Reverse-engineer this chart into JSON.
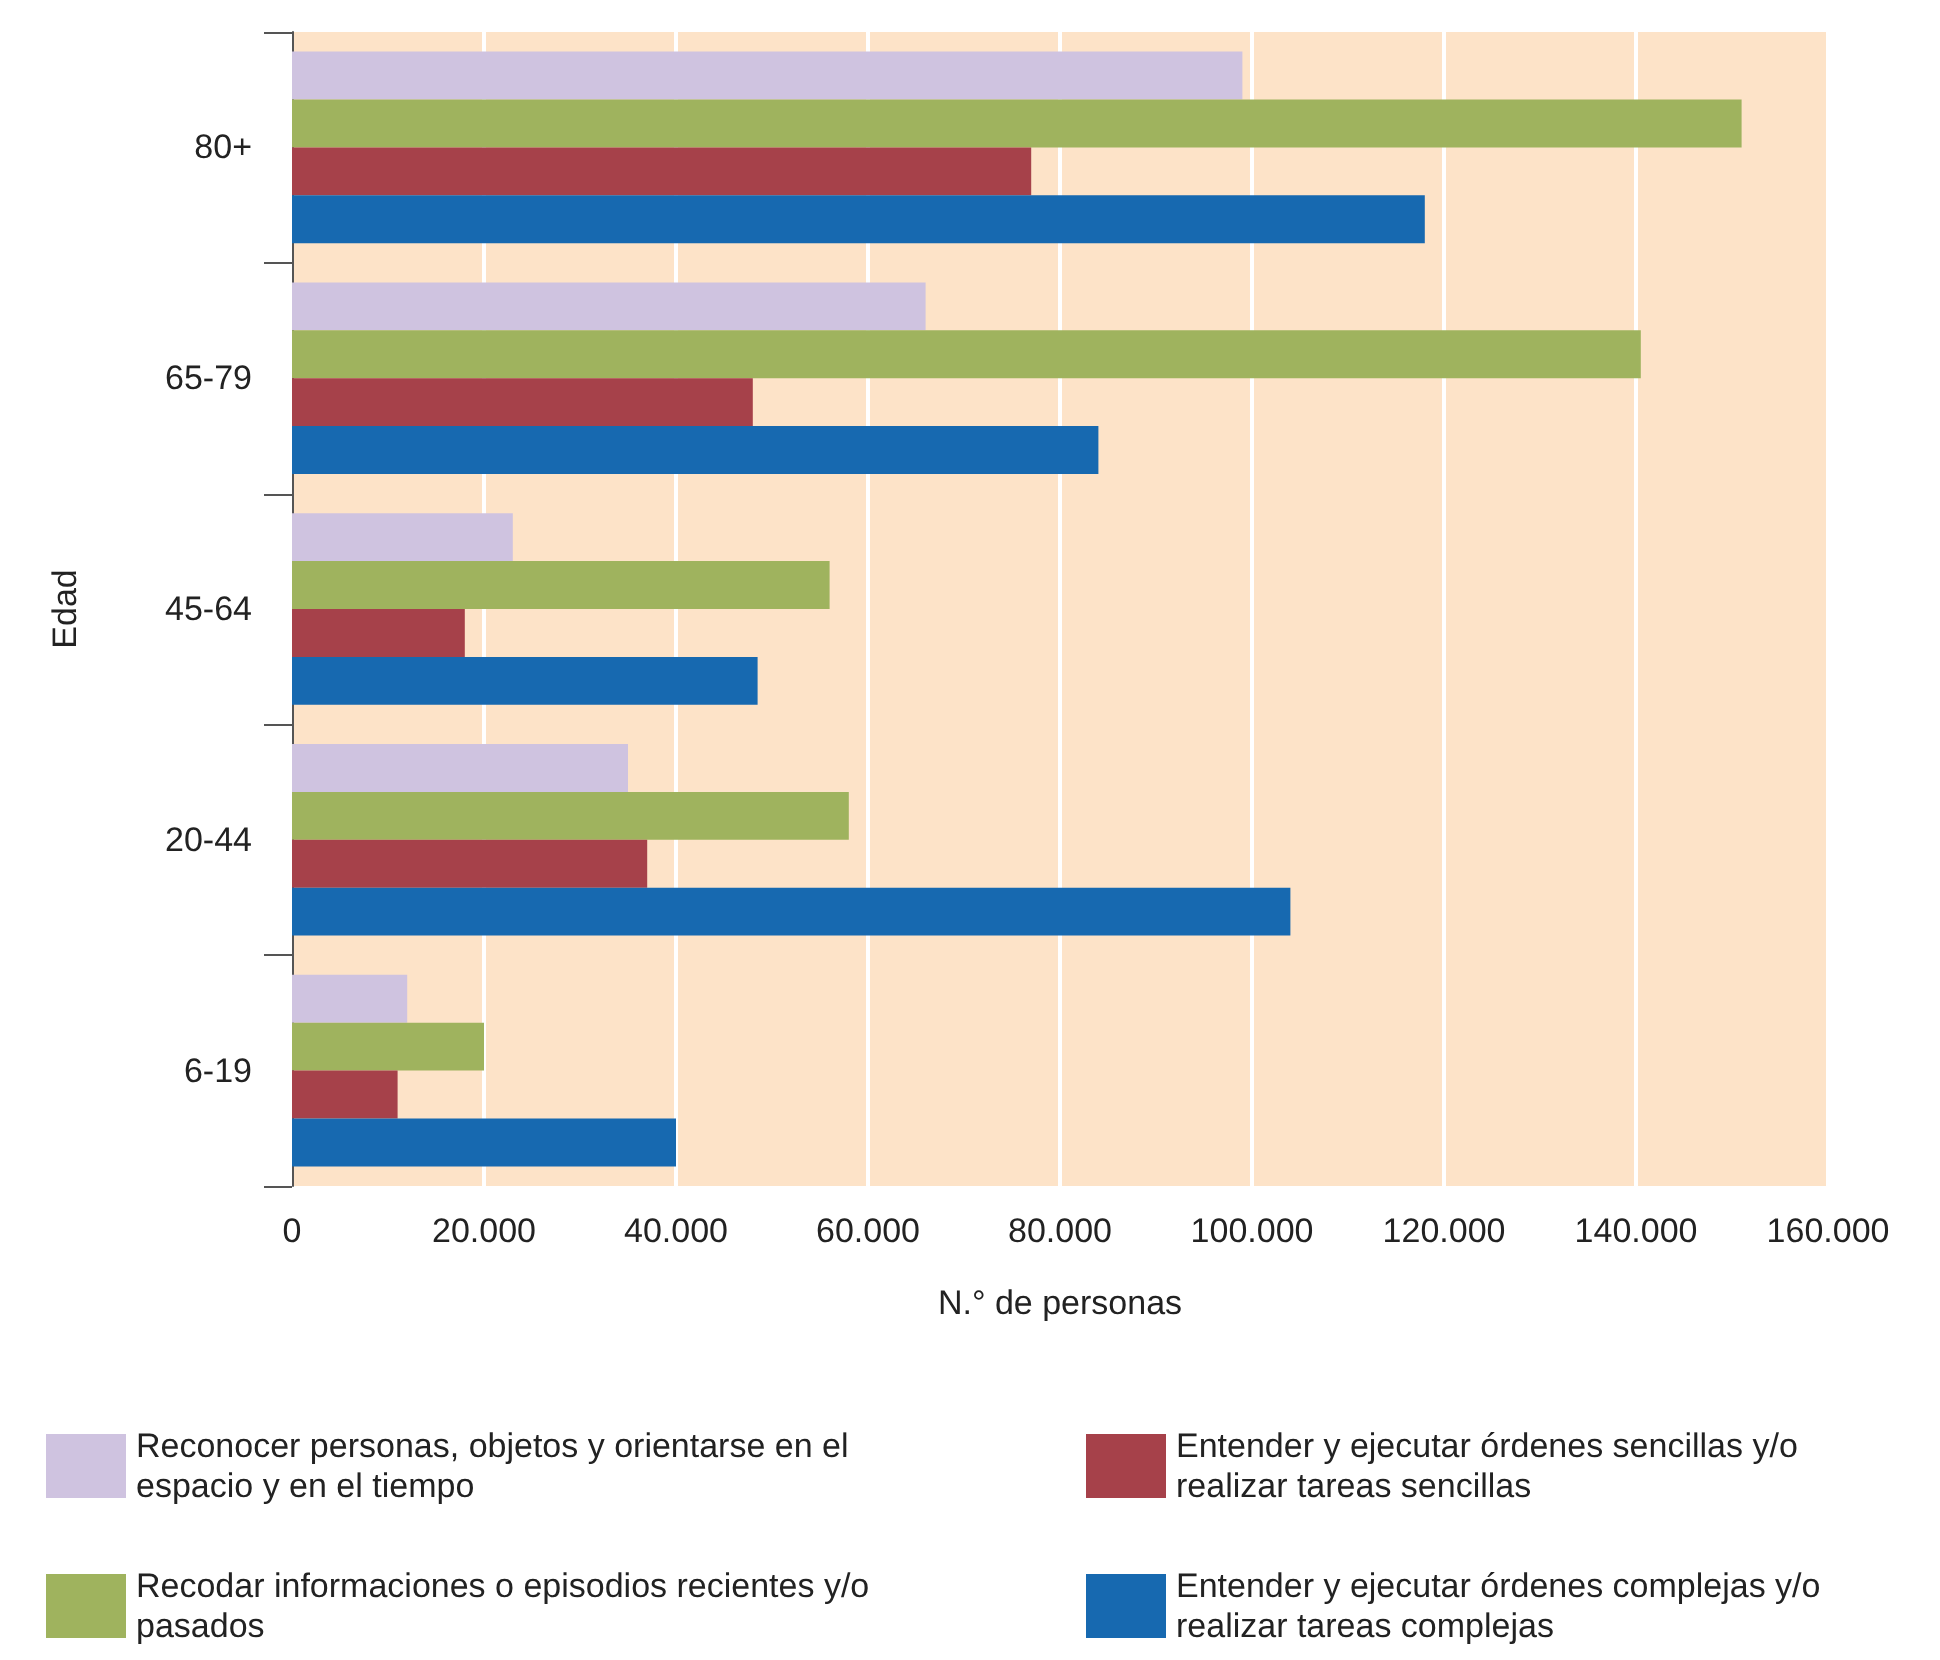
{
  "chart_data": {
    "type": "bar",
    "orientation": "horizontal",
    "xlabel": "N.° de personas",
    "ylabel": "Edad",
    "categories": [
      "80+",
      "65-79",
      "45-64",
      "20-44",
      "6-19"
    ],
    "series": [
      {
        "name": "Reconocer personas, objetos y orientarse en el espacio y en el tiempo",
        "color": "#cfc3e0",
        "values": [
          99000,
          66000,
          23000,
          35000,
          12000
        ]
      },
      {
        "name": "Recodar informaciones o episodios recientes y/o pasados",
        "color": "#9fb35e",
        "values": [
          151000,
          140500,
          56000,
          58000,
          20000
        ]
      },
      {
        "name": "Entender y ejecutar órdenes sencillas y/o realizar tareas sencillas",
        "color": "#a6414a",
        "values": [
          77000,
          48000,
          18000,
          37000,
          11000
        ]
      },
      {
        "name": "Entender y ejecutar órdenes complejas y/o realizar tareas complejas",
        "color": "#1769b0",
        "values": [
          118000,
          84000,
          48500,
          104000,
          40000
        ]
      }
    ],
    "xlim": [
      0,
      160000
    ],
    "xticks": [
      0,
      {
        "value": 20000,
        "label": "20.000"
      },
      {
        "value": 40000,
        "label": "40.000"
      },
      {
        "value": 60000,
        "label": "60.000"
      },
      {
        "value": 80000,
        "label": "80.000"
      },
      {
        "value": 100000,
        "label": "100.000"
      },
      {
        "value": 120000,
        "label": "120.000"
      },
      {
        "value": 140000,
        "label": "140.000"
      },
      {
        "value": 160000,
        "label": "160.000"
      }
    ],
    "grid": "x",
    "legend": "bottom"
  }
}
